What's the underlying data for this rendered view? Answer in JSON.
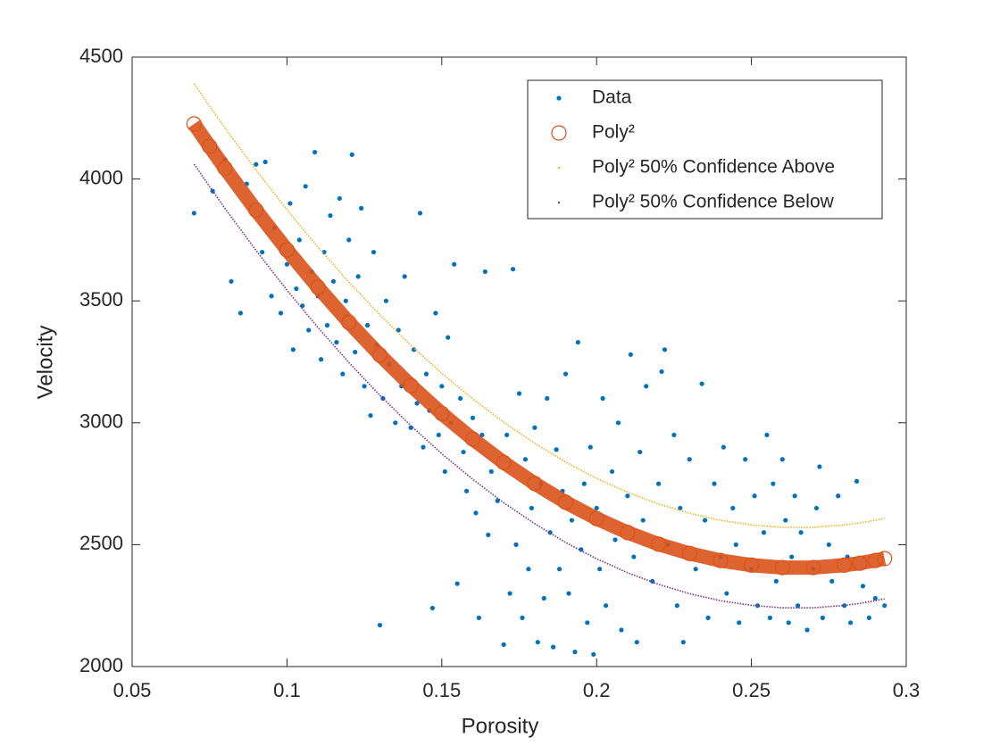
{
  "chart_data": {
    "type": "scatter",
    "xlabel": "Porosity",
    "ylabel": "Velocity",
    "xlim": [
      0.05,
      0.3
    ],
    "xticks": [
      0.05,
      0.1,
      0.15,
      0.2,
      0.25,
      0.3
    ],
    "ylim": [
      2000,
      4500
    ],
    "yticks": [
      2000,
      2500,
      3000,
      3500,
      4000,
      4500
    ],
    "legend": "upper right",
    "series": [
      {
        "name": "Data",
        "color": "#0072BD",
        "marker": "dot",
        "x": [
          0.07,
          0.076,
          0.08,
          0.082,
          0.085,
          0.087,
          0.09,
          0.092,
          0.093,
          0.095,
          0.096,
          0.098,
          0.1,
          0.101,
          0.102,
          0.103,
          0.104,
          0.105,
          0.106,
          0.107,
          0.108,
          0.109,
          0.11,
          0.111,
          0.112,
          0.113,
          0.114,
          0.115,
          0.116,
          0.117,
          0.118,
          0.119,
          0.12,
          0.121,
          0.122,
          0.123,
          0.124,
          0.125,
          0.126,
          0.127,
          0.128,
          0.129,
          0.13,
          0.131,
          0.132,
          0.133,
          0.135,
          0.136,
          0.137,
          0.138,
          0.14,
          0.141,
          0.142,
          0.143,
          0.144,
          0.145,
          0.146,
          0.147,
          0.148,
          0.149,
          0.15,
          0.151,
          0.152,
          0.153,
          0.154,
          0.155,
          0.156,
          0.157,
          0.158,
          0.16,
          0.161,
          0.162,
          0.163,
          0.164,
          0.165,
          0.166,
          0.168,
          0.17,
          0.171,
          0.172,
          0.173,
          0.174,
          0.175,
          0.176,
          0.177,
          0.178,
          0.179,
          0.18,
          0.181,
          0.182,
          0.183,
          0.184,
          0.185,
          0.186,
          0.187,
          0.188,
          0.189,
          0.19,
          0.191,
          0.192,
          0.193,
          0.194,
          0.195,
          0.196,
          0.197,
          0.198,
          0.199,
          0.2,
          0.201,
          0.202,
          0.203,
          0.205,
          0.206,
          0.207,
          0.208,
          0.21,
          0.211,
          0.212,
          0.213,
          0.214,
          0.215,
          0.216,
          0.218,
          0.22,
          0.221,
          0.222,
          0.223,
          0.225,
          0.226,
          0.227,
          0.228,
          0.23,
          0.232,
          0.234,
          0.235,
          0.236,
          0.238,
          0.24,
          0.241,
          0.242,
          0.244,
          0.245,
          0.246,
          0.248,
          0.25,
          0.251,
          0.252,
          0.254,
          0.255,
          0.256,
          0.257,
          0.258,
          0.26,
          0.261,
          0.262,
          0.263,
          0.264,
          0.265,
          0.266,
          0.268,
          0.27,
          0.271,
          0.272,
          0.273,
          0.275,
          0.276,
          0.278,
          0.28,
          0.281,
          0.282,
          0.284,
          0.286,
          0.288,
          0.29,
          0.293
        ],
        "values": [
          3860,
          3950,
          4080,
          3580,
          3450,
          3980,
          4060,
          3700,
          4070,
          3520,
          3800,
          3450,
          3650,
          3900,
          3300,
          3550,
          3750,
          3480,
          3970,
          3380,
          3620,
          4110,
          3520,
          3260,
          3700,
          3400,
          3850,
          3580,
          3330,
          3920,
          3200,
          3500,
          3750,
          4100,
          3290,
          3600,
          3880,
          3150,
          3400,
          3030,
          3700,
          3320,
          2170,
          3100,
          3500,
          3240,
          3000,
          3380,
          3150,
          3600,
          2980,
          3300,
          3080,
          3860,
          2900,
          3200,
          3050,
          2240,
          3450,
          2950,
          3150,
          2800,
          3350,
          3000,
          3650,
          2340,
          3100,
          2880,
          2720,
          3020,
          2630,
          2200,
          2950,
          3620,
          2540,
          2800,
          2680,
          2090,
          2950,
          2300,
          3630,
          2500,
          3120,
          2200,
          2850,
          2400,
          2650,
          2980,
          2100,
          2750,
          2280,
          3100,
          2550,
          2080,
          2890,
          2400,
          2720,
          3200,
          2300,
          2600,
          2060,
          3330,
          2480,
          2750,
          2180,
          2900,
          2050,
          2650,
          2400,
          3100,
          2250,
          2800,
          2520,
          3000,
          2150,
          2700,
          3280,
          2450,
          2100,
          2880,
          2600,
          3150,
          2350,
          2750,
          3210,
          3300,
          2500,
          2950,
          2250,
          2650,
          2100,
          2850,
          2400,
          3160,
          2600,
          2200,
          2750,
          2450,
          2900,
          2300,
          2650,
          2500,
          2180,
          2850,
          2400,
          2700,
          2250,
          2550,
          2950,
          2200,
          2750,
          2350,
          2850,
          2600,
          2180,
          2450,
          2700,
          2250,
          2550,
          2150,
          2400,
          2650,
          2820,
          2200,
          2500,
          2350,
          2700,
          2250,
          2450,
          2180,
          2760,
          2330,
          2200,
          2280,
          2250
        ]
      },
      {
        "name": "Poly²",
        "color": "#D95319",
        "marker": "circle",
        "x": [
          0.07,
          0.075,
          0.08,
          0.09,
          0.1,
          0.11,
          0.12,
          0.13,
          0.14,
          0.15,
          0.16,
          0.17,
          0.18,
          0.19,
          0.2,
          0.21,
          0.22,
          0.23,
          0.24,
          0.25,
          0.26,
          0.27,
          0.28,
          0.285,
          0.29,
          0.293
        ],
        "values": [
          4226,
          4134,
          4044,
          3872,
          3709,
          3556,
          3412,
          3278,
          3153,
          3038,
          2933,
          2837,
          2751,
          2674,
          2607,
          2550,
          2502,
          2464,
          2435,
          2416,
          2406,
          2406,
          2416,
          2424,
          2435,
          2443
        ]
      },
      {
        "name": "Poly² 50% Confidence Above",
        "color": "#EDB120",
        "marker": "point",
        "x": [
          0.07,
          0.075,
          0.08,
          0.09,
          0.1,
          0.11,
          0.12,
          0.13,
          0.14,
          0.15,
          0.16,
          0.17,
          0.18,
          0.19,
          0.2,
          0.21,
          0.22,
          0.23,
          0.24,
          0.25,
          0.26,
          0.27,
          0.28,
          0.285,
          0.29,
          0.293
        ],
        "values": [
          4391,
          4299,
          4209,
          4037,
          3874,
          3721,
          3577,
          3443,
          3318,
          3203,
          3098,
          3002,
          2916,
          2839,
          2772,
          2715,
          2667,
          2629,
          2600,
          2581,
          2571,
          2571,
          2581,
          2589,
          2600,
          2608
        ]
      },
      {
        "name": "Poly² 50% Confidence Below",
        "color": "#7E2F8E",
        "marker": "point",
        "x": [
          0.07,
          0.075,
          0.08,
          0.09,
          0.1,
          0.11,
          0.12,
          0.13,
          0.14,
          0.15,
          0.16,
          0.17,
          0.18,
          0.19,
          0.2,
          0.21,
          0.22,
          0.23,
          0.24,
          0.25,
          0.26,
          0.27,
          0.28,
          0.285,
          0.29,
          0.293
        ],
        "values": [
          4061,
          3969,
          3879,
          3707,
          3544,
          3391,
          3247,
          3113,
          2988,
          2873,
          2768,
          2672,
          2586,
          2509,
          2442,
          2385,
          2337,
          2299,
          2270,
          2251,
          2241,
          2241,
          2251,
          2259,
          2270,
          2278
        ]
      }
    ]
  }
}
